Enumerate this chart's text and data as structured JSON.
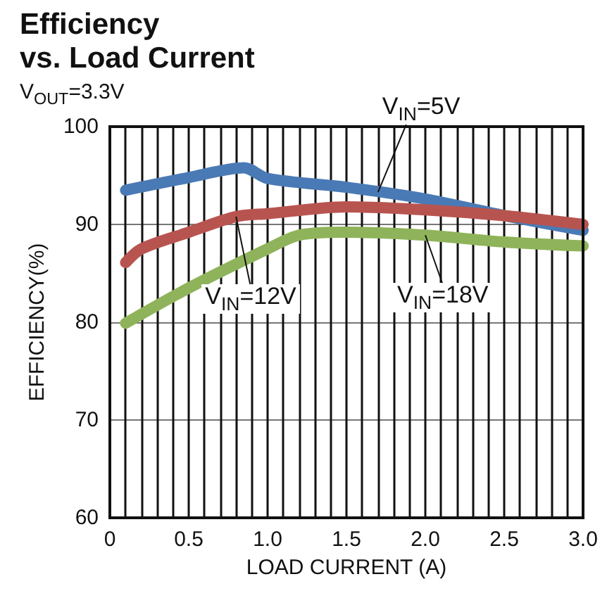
{
  "chart_data": {
    "type": "line",
    "title": "Efficiency vs. Load Current",
    "subtitle": "V$_{OUT}$=3.3V",
    "xlabel": "LOAD CURRENT (A)",
    "ylabel": "EFFICIENCY(%)",
    "series": [
      {
        "color": "#4a7ab5",
        "x": [
          0.1,
          0.5,
          0.85,
          1.0,
          1.5,
          2.0,
          2.5,
          3.0
        ],
        "values": [
          93.5,
          94.8,
          95.8,
          94.7,
          93.8,
          92.6,
          90.9,
          89.4
        ]
      },
      {
        "color": "#b85450",
        "x": [
          0.1,
          0.2,
          0.5,
          0.8,
          1.0,
          1.5,
          2.0,
          2.5,
          3.0
        ],
        "values": [
          86.1,
          87.5,
          89.2,
          90.8,
          91.1,
          91.8,
          91.5,
          90.9,
          90.0
        ]
      },
      {
        "color": "#8fb35a",
        "x": [
          0.1,
          0.5,
          1.0,
          1.2,
          1.5,
          2.0,
          2.5,
          3.0
        ],
        "values": [
          79.9,
          83.5,
          87.5,
          88.9,
          89.2,
          88.9,
          88.2,
          87.8
        ]
      }
    ],
    "annotations": [
      {
        "text": "V$_{IN}$=5V",
        "x": 1.7,
        "y": 93.3
      },
      {
        "text": "V$_{IN}$=12V",
        "x": 0.8,
        "y": 90.8
      },
      {
        "text": "V$_{IN}$=18V",
        "x": 2.0,
        "y": 88.9
      }
    ],
    "xlim": [
      0,
      3
    ],
    "xticks": [
      0,
      {
        "value": 0.5,
        "label": "0.5"
      },
      {
        "value": 1,
        "label": "1.0"
      },
      {
        "value": 1.5,
        "label": "1.5"
      },
      {
        "value": 2,
        "label": "2.0"
      },
      {
        "value": 2.5,
        "label": "2.5"
      },
      {
        "value": 3,
        "label": "3.0"
      }
    ],
    "ylim": [
      60,
      100
    ],
    "yticks": [
      60,
      70,
      80,
      90,
      100
    ],
    "grid": true,
    "marker": "none",
    "line_style": "solid"
  }
}
